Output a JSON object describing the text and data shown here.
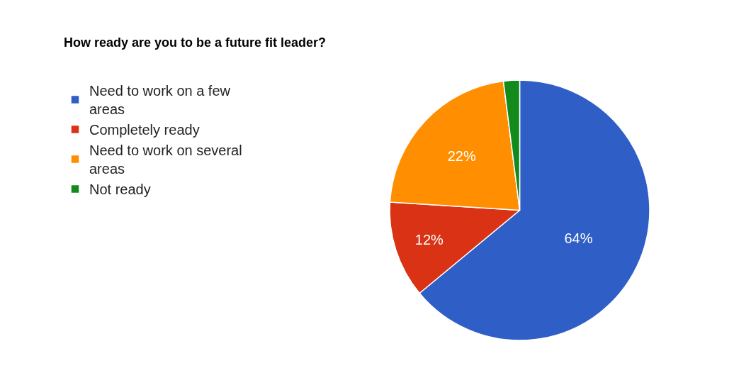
{
  "chart_data": {
    "type": "pie",
    "title": "How ready are you to be a future fit leader?",
    "categories": [
      "Need to work on a few areas",
      "Completely ready",
      "Need to work on several areas",
      "Not ready"
    ],
    "values": [
      64,
      12,
      22,
      2
    ],
    "colors": [
      "#2e5ec6",
      "#d93215",
      "#ff8f00",
      "#128a1c"
    ],
    "value_labels": [
      "64%",
      "12%",
      "22%",
      null
    ],
    "legend": "left"
  }
}
